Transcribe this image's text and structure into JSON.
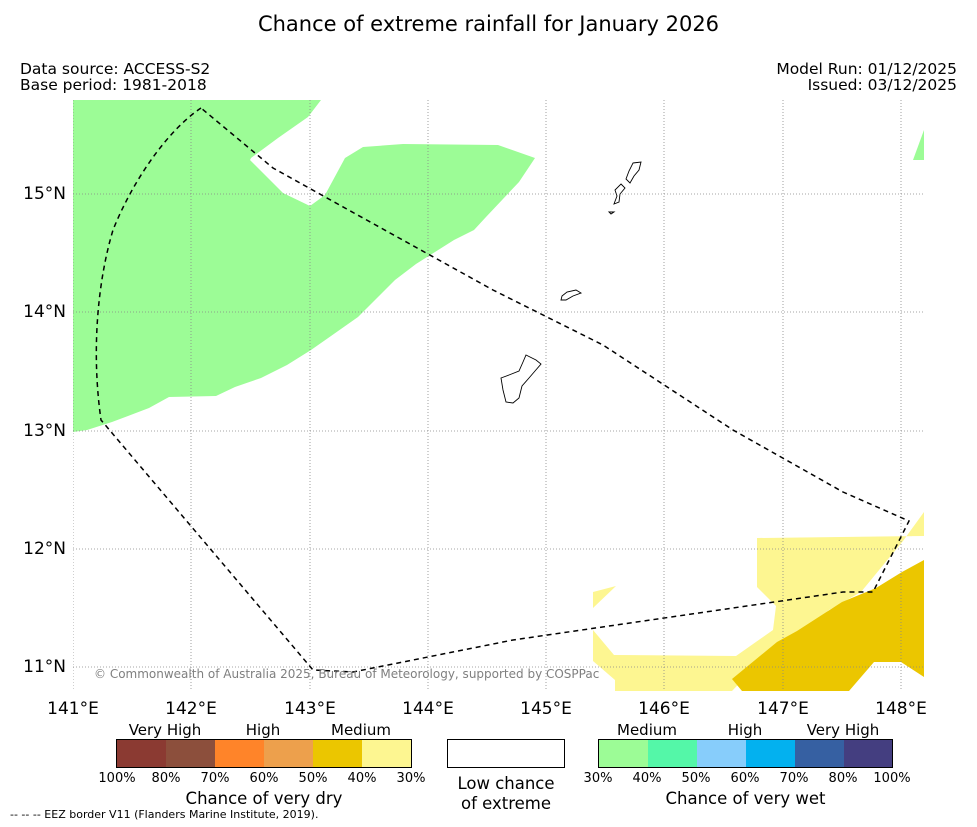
{
  "title": "Chance of extreme rainfall for January 2026",
  "meta": {
    "data_source": "Data source: ACCESS-S2",
    "base_period": "Base period: 1981-2018",
    "model_run": "Model Run: 01/12/2025",
    "issued": "Issued: 03/12/2025"
  },
  "map": {
    "lat_labels": [
      "15°N",
      "14°N",
      "13°N",
      "12°N",
      "11°N"
    ],
    "lon_labels": [
      "141°E",
      "142°E",
      "143°E",
      "144°E",
      "145°E",
      "146°E",
      "147°E",
      "148°E"
    ],
    "copyright": "© Commonwealth of Australia 2025, Bureau of Meteorology, supported by COSPPac",
    "colors": {
      "wet_medium": "#9cfc96",
      "dry_medium_light": "#fdf691",
      "dry_medium_dark": "#ebc600"
    }
  },
  "legend_dry": {
    "levels": [
      "Very High",
      "High",
      "Medium"
    ],
    "percents": [
      "100%",
      "80%",
      "70%",
      "60%",
      "50%",
      "40%",
      "30%"
    ],
    "colors": [
      "#8b3a32",
      "#8c4f3c",
      "#ff8429",
      "#eda04c",
      "#ebc600",
      "#fdf691"
    ],
    "title": "Chance of very dry"
  },
  "legend_low": {
    "line1": "Low chance",
    "line2": "of extreme"
  },
  "legend_wet": {
    "levels": [
      "Medium",
      "High",
      "Very High"
    ],
    "percents": [
      "30%",
      "40%",
      "50%",
      "60%",
      "70%",
      "80%",
      "100%"
    ],
    "colors": [
      "#9cfc96",
      "#54f7a8",
      "#87cdfb",
      "#03b1ef",
      "#3660a2",
      "#443e80"
    ],
    "title": "Chance of very wet"
  },
  "footnote": "-- -- -- EEZ border V11 (Flanders Marine Institute, 2019)."
}
